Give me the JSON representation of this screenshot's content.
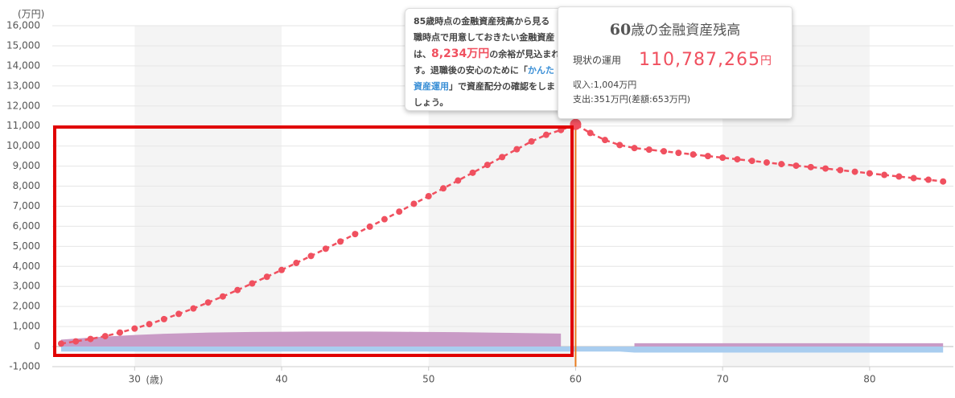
{
  "chart_data": {
    "type": "line",
    "y_unit": "(万円)",
    "x_unit": "(歳)",
    "x": [
      25,
      26,
      27,
      28,
      29,
      30,
      31,
      32,
      33,
      34,
      35,
      36,
      37,
      38,
      39,
      40,
      41,
      42,
      43,
      44,
      45,
      46,
      47,
      48,
      49,
      50,
      51,
      52,
      53,
      54,
      55,
      56,
      57,
      58,
      59,
      60,
      61,
      62,
      63,
      64,
      65,
      66,
      67,
      68,
      69,
      70,
      71,
      72,
      73,
      74,
      75,
      76,
      77,
      78,
      79,
      80,
      81,
      82,
      83,
      84,
      85
    ],
    "series": [
      {
        "color": "#f0505f",
        "values": [
          150,
          260,
          380,
          520,
          700,
          900,
          1120,
          1370,
          1630,
          1900,
          2200,
          2500,
          2820,
          3150,
          3480,
          3820,
          4170,
          4520,
          4880,
          5240,
          5610,
          5980,
          6350,
          6730,
          7120,
          7500,
          7890,
          8280,
          8670,
          9060,
          9450,
          9840,
          10230,
          10560,
          10800,
          11079,
          10650,
          10300,
          10050,
          9900,
          9820,
          9740,
          9660,
          9580,
          9500,
          9420,
          9340,
          9260,
          9180,
          9100,
          9020,
          8950,
          8880,
          8800,
          8720,
          8640,
          8560,
          8480,
          8400,
          8320,
          8234
        ]
      }
    ],
    "areas": [
      {
        "color": "#c99bc6",
        "values": [
          350,
          400,
          450,
          500,
          540,
          580,
          610,
          640,
          660,
          680,
          700,
          710,
          720,
          730,
          735,
          740,
          745,
          750,
          750,
          750,
          750,
          750,
          745,
          740,
          735,
          730,
          725,
          720,
          710,
          700,
          690,
          680,
          670,
          660,
          650,
          null,
          null,
          null,
          null,
          170,
          170,
          170,
          170,
          170,
          170,
          170,
          170,
          170,
          170,
          170,
          170,
          170,
          170,
          170,
          170,
          170,
          170,
          170,
          170,
          170,
          170
        ]
      },
      {
        "color": "#a9cdef",
        "values": [
          -250,
          -250,
          -250,
          -250,
          -250,
          -250,
          -250,
          -250,
          -250,
          -250,
          -250,
          -250,
          -250,
          -250,
          -250,
          -250,
          -250,
          -250,
          -250,
          -250,
          -250,
          -250,
          -250,
          -250,
          -250,
          -250,
          -250,
          -250,
          -250,
          -250,
          -250,
          -250,
          -250,
          -250,
          -250,
          -250,
          -250,
          -250,
          -250,
          -300,
          -300,
          -300,
          -300,
          -300,
          -300,
          -300,
          -300,
          -300,
          -300,
          -300,
          -300,
          -300,
          -300,
          -300,
          -300,
          -300,
          -300,
          -300,
          -300,
          -300,
          -300
        ]
      }
    ],
    "cursor_x": 60,
    "cursor_color": "#e87b1e",
    "xlim": [
      24.4,
      85.7
    ],
    "xticks": [
      30,
      40,
      50,
      60,
      70,
      80
    ],
    "ylim": [
      -1000,
      16000
    ],
    "yticks": [
      {
        "value": -1000,
        "label": "-1,000"
      },
      0,
      {
        "value": 1000,
        "label": "1,000"
      },
      {
        "value": 2000,
        "label": "2,000"
      },
      {
        "value": 3000,
        "label": "3,000"
      },
      {
        "value": 4000,
        "label": "4,000"
      },
      {
        "value": 5000,
        "label": "5,000"
      },
      {
        "value": 6000,
        "label": "6,000"
      },
      {
        "value": 7000,
        "label": "7,000"
      },
      {
        "value": 8000,
        "label": "8,000"
      },
      {
        "value": 9000,
        "label": "9,000"
      },
      {
        "value": 10000,
        "label": "10,000"
      },
      {
        "value": 11000,
        "label": "11,000"
      },
      {
        "value": 12000,
        "label": "12,000"
      },
      {
        "value": 13000,
        "label": "13,000"
      },
      {
        "value": 14000,
        "label": "14,000"
      },
      {
        "value": 15000,
        "label": "15,000"
      },
      {
        "value": 16000,
        "label": "16,000"
      }
    ],
    "grid": true
  },
  "popup": {
    "lines": [
      [
        {
          "text": "85歳時点の金融資産残高から見る"
        }
      ],
      [
        {
          "text": "職時点で用意しておきたい金融資産"
        }
      ],
      [
        {
          "text": "は、"
        },
        {
          "text": "8,234万円",
          "color": "red"
        },
        {
          "text": "の余裕が見込まれ"
        }
      ],
      [
        {
          "text": "す。退職後の安心のために「"
        },
        {
          "text": "かんた",
          "color": "blue"
        }
      ],
      [
        {
          "text": "資産運用",
          "color": "blue"
        },
        {
          "text": "」で資産配分の確認をしま"
        }
      ],
      [
        {
          "text": "しょう。"
        }
      ]
    ]
  },
  "tooltip": {
    "age": "60",
    "title": "歳の金融資産残高",
    "label": "現状の運用",
    "amount": "110,787,265",
    "unit": "円",
    "income": "収入:1,004万円",
    "expense": "支出:351万円(差額:653万円)"
  }
}
